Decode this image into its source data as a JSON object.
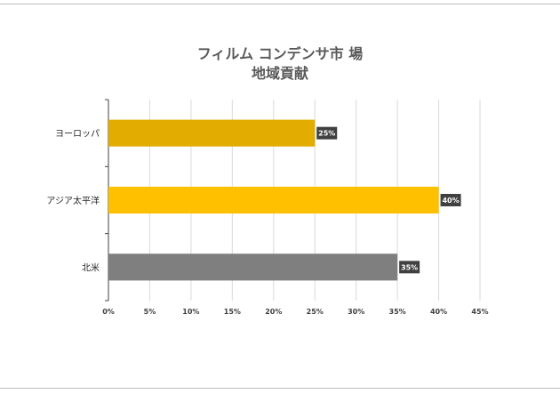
{
  "chart_data": {
    "type": "bar",
    "orientation": "horizontal",
    "title": [
      "フィルム コンデンサ市 場",
      "地域貢献"
    ],
    "categories": [
      "ヨーロッパ",
      "アジア太平洋",
      "北米"
    ],
    "values": [
      25,
      40,
      35
    ],
    "data_labels": [
      "25%",
      "40%",
      "35%"
    ],
    "colors": [
      "#E2AC00",
      "#FFC000",
      "#7F7F7F"
    ],
    "xlim": [
      0,
      45
    ],
    "x_ticks": [
      "0%",
      "5%",
      "10%",
      "15%",
      "20%",
      "25%",
      "30%",
      "35%",
      "40%",
      "45%"
    ],
    "grid": true,
    "legend": "none"
  }
}
